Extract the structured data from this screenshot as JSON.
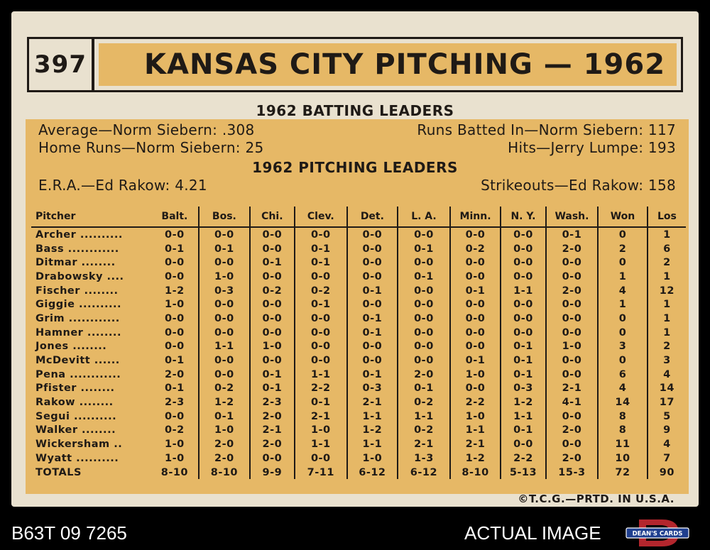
{
  "card": {
    "number": "397",
    "title": "KANSAS CITY PITCHING — 1962"
  },
  "batting": {
    "heading": "1962 BATTING LEADERS",
    "average": "Average—Norm Siebern: .308",
    "rbi": "Runs Batted In—Norm Siebern: 117",
    "home_runs": "Home Runs—Norm Siebern: 25",
    "hits": "Hits—Jerry Lumpe: 193"
  },
  "pitching_leaders": {
    "heading": "1962 PITCHING LEADERS",
    "era": "E.R.A.—Ed Rakow: 4.21",
    "strikeouts": "Strikeouts—Ed Rakow: 158"
  },
  "table": {
    "headers": [
      "Pitcher",
      "Balt.",
      "Bos.",
      "Chi.",
      "Clev.",
      "Det.",
      "L. A.",
      "Minn.",
      "N. Y.",
      "Wash.",
      "Won",
      "Los"
    ],
    "rows": [
      [
        "Archer ..........",
        "0-0",
        "0-0",
        "0-0",
        "0-0",
        "0-0",
        "0-0",
        "0-0",
        "0-0",
        "0-1",
        "0",
        "1"
      ],
      [
        "Bass ............",
        "0-1",
        "0-1",
        "0-0",
        "0-1",
        "0-0",
        "0-1",
        "0-2",
        "0-0",
        "2-0",
        "2",
        "6"
      ],
      [
        "Ditmar ........",
        "0-0",
        "0-0",
        "0-1",
        "0-1",
        "0-0",
        "0-0",
        "0-0",
        "0-0",
        "0-0",
        "0",
        "2"
      ],
      [
        "Drabowsky ....",
        "0-0",
        "1-0",
        "0-0",
        "0-0",
        "0-0",
        "0-1",
        "0-0",
        "0-0",
        "0-0",
        "1",
        "1"
      ],
      [
        "Fischer ........",
        "1-2",
        "0-3",
        "0-2",
        "0-2",
        "0-1",
        "0-0",
        "0-1",
        "1-1",
        "2-0",
        "4",
        "12"
      ],
      [
        "Giggie ..........",
        "1-0",
        "0-0",
        "0-0",
        "0-1",
        "0-0",
        "0-0",
        "0-0",
        "0-0",
        "0-0",
        "1",
        "1"
      ],
      [
        "Grim ............",
        "0-0",
        "0-0",
        "0-0",
        "0-0",
        "0-1",
        "0-0",
        "0-0",
        "0-0",
        "0-0",
        "0",
        "1"
      ],
      [
        "Hamner ........",
        "0-0",
        "0-0",
        "0-0",
        "0-0",
        "0-1",
        "0-0",
        "0-0",
        "0-0",
        "0-0",
        "0",
        "1"
      ],
      [
        "Jones ........",
        "0-0",
        "1-1",
        "1-0",
        "0-0",
        "0-0",
        "0-0",
        "0-0",
        "0-1",
        "1-0",
        "3",
        "2"
      ],
      [
        "McDevitt ......",
        "0-1",
        "0-0",
        "0-0",
        "0-0",
        "0-0",
        "0-0",
        "0-1",
        "0-1",
        "0-0",
        "0",
        "3"
      ],
      [
        "Pena ............",
        "2-0",
        "0-0",
        "0-1",
        "1-1",
        "0-1",
        "2-0",
        "1-0",
        "0-1",
        "0-0",
        "6",
        "4"
      ],
      [
        "Pfister ........",
        "0-1",
        "0-2",
        "0-1",
        "2-2",
        "0-3",
        "0-1",
        "0-0",
        "0-3",
        "2-1",
        "4",
        "14"
      ],
      [
        "Rakow ........",
        "2-3",
        "1-2",
        "2-3",
        "0-1",
        "2-1",
        "0-2",
        "2-2",
        "1-2",
        "4-1",
        "14",
        "17"
      ],
      [
        "Segui ..........",
        "0-0",
        "0-1",
        "2-0",
        "2-1",
        "1-1",
        "1-1",
        "1-0",
        "1-1",
        "0-0",
        "8",
        "5"
      ],
      [
        "Walker ........",
        "0-2",
        "1-0",
        "2-1",
        "1-0",
        "1-2",
        "0-2",
        "1-1",
        "0-1",
        "2-0",
        "8",
        "9"
      ],
      [
        "Wickersham ..",
        "1-0",
        "2-0",
        "2-0",
        "1-1",
        "1-1",
        "2-1",
        "2-1",
        "0-0",
        "0-0",
        "11",
        "4"
      ],
      [
        "Wyatt ..........",
        "1-0",
        "2-0",
        "0-0",
        "0-0",
        "1-0",
        "1-3",
        "1-2",
        "2-2",
        "2-0",
        "10",
        "7"
      ],
      [
        "TOTALS",
        "8-10",
        "8-10",
        "9-9",
        "7-11",
        "6-12",
        "6-12",
        "8-10",
        "5-13",
        "15-3",
        "72",
        "90"
      ]
    ]
  },
  "copyright": "©T.C.G.—PRTD. IN U.S.A.",
  "footer": {
    "left": "B63T 09 7265",
    "right": "ACTUAL IMAGE",
    "logo_text": "DEAN'S CARDS",
    "logo_letter": "D"
  },
  "colors": {
    "card": "#e9e1cf",
    "panel": "#e6b866",
    "ink": "#1f1a16",
    "logo_red": "#b3262d",
    "logo_blue": "#1f3f8f"
  }
}
